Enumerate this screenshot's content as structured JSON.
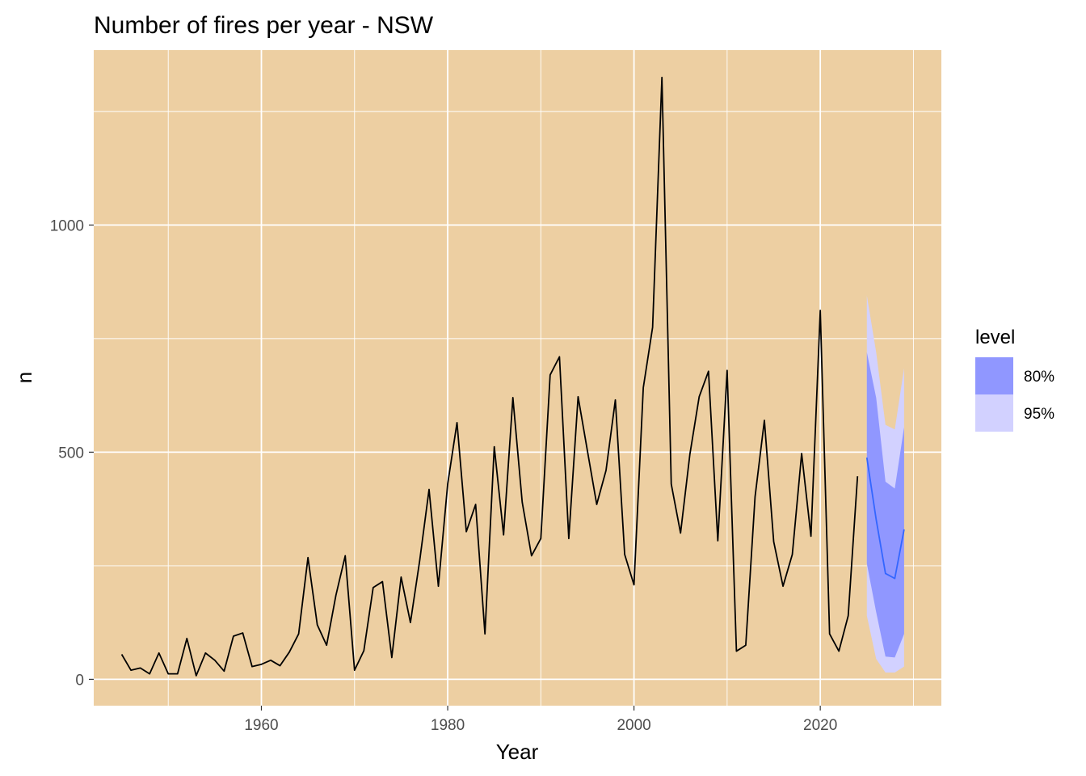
{
  "chart_data": {
    "type": "line",
    "title": "Number of fires per year - NSW",
    "xlabel": "Year",
    "ylabel": "n",
    "xlim": [
      1942,
      2033
    ],
    "ylim": [
      -58,
      1385
    ],
    "x_ticks_major": [
      1960,
      1980,
      2000,
      2020
    ],
    "x_ticks_minor": [
      1950,
      1970,
      1990,
      2010,
      2030
    ],
    "y_ticks_major": [
      0,
      500,
      1000
    ],
    "y_ticks_minor": [
      250,
      750,
      1250
    ],
    "panel_background": "#EDCFA2",
    "grid": true,
    "series": [
      {
        "color": "#000000",
        "x": [
          1945,
          1946,
          1947,
          1948,
          1949,
          1950,
          1951,
          1952,
          1953,
          1954,
          1955,
          1956,
          1957,
          1958,
          1959,
          1960,
          1961,
          1962,
          1963,
          1964,
          1965,
          1966,
          1967,
          1968,
          1969,
          1970,
          1971,
          1972,
          1973,
          1974,
          1975,
          1976,
          1977,
          1978,
          1979,
          1980,
          1981,
          1982,
          1983,
          1984,
          1985,
          1986,
          1987,
          1988,
          1989,
          1990,
          1991,
          1992,
          1993,
          1994,
          1995,
          1996,
          1997,
          1998,
          1999,
          2000,
          2001,
          2002,
          2003,
          2004,
          2005,
          2006,
          2007,
          2008,
          2009,
          2010,
          2011,
          2012,
          2013,
          2014,
          2015,
          2016,
          2017,
          2018,
          2019,
          2020,
          2021,
          2022,
          2023,
          2024
        ],
        "values": [
          55,
          20,
          25,
          12,
          58,
          12,
          12,
          90,
          8,
          58,
          42,
          18,
          95,
          102,
          28,
          33,
          42,
          30,
          60,
          100,
          268,
          120,
          75,
          185,
          272,
          20,
          63,
          202,
          215,
          48,
          225,
          125,
          262,
          418,
          205,
          430,
          565,
          325,
          385,
          100,
          512,
          318,
          620,
          390,
          272,
          310,
          670,
          710,
          310,
          622,
          503,
          385,
          460,
          615,
          275,
          208,
          642,
          775,
          1325,
          430,
          322,
          495,
          622,
          678,
          305,
          680,
          62,
          75,
          402,
          570,
          303,
          205,
          275,
          497,
          315,
          812,
          100,
          62,
          140,
          447
        ]
      }
    ],
    "forecast": {
      "color": "#3366FF",
      "x": [
        2025,
        2026,
        2027,
        2028,
        2029
      ],
      "mean": [
        488,
        352,
        233,
        222,
        330
      ],
      "bands": [
        {
          "level": "80%",
          "color": "#9097FF",
          "lower": [
            255,
            148,
            50,
            48,
            100
          ],
          "upper": [
            720,
            620,
            435,
            420,
            555
          ]
        },
        {
          "level": "95%",
          "color": "#D2D1FF",
          "lower": [
            140,
            45,
            15,
            15,
            28
          ],
          "upper": [
            845,
            720,
            560,
            550,
            685
          ]
        }
      ]
    },
    "legend": {
      "title": "level",
      "position": "right",
      "entries": [
        "80%",
        "95%"
      ]
    }
  }
}
